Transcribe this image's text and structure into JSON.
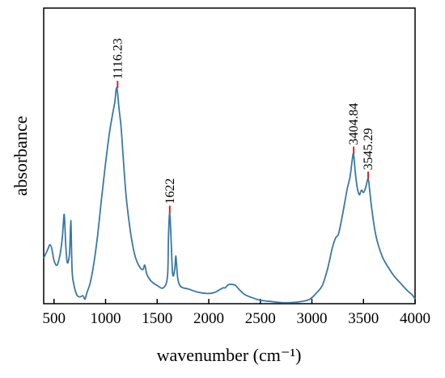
{
  "chart_data": {
    "type": "line",
    "xlabel": "wavenumber (cm⁻¹)",
    "ylabel": "absorbance",
    "xlim": [
      400,
      4000
    ],
    "ylim": [
      0,
      1
    ],
    "y_tick_labels_shown": false,
    "x_ticks": [
      500,
      1000,
      1500,
      2000,
      2500,
      3000,
      3500,
      4000
    ],
    "x_tick_labels": [
      "500",
      "1000",
      "1500",
      "2000",
      "2500",
      "3000",
      "3500",
      "4000"
    ],
    "colors": {
      "line": "#3a78a6",
      "peak_marker": "#e02020",
      "axis": "#000000"
    },
    "series": [
      {
        "x": [
          400,
          440,
          460,
          480,
          500,
          530,
          560,
          580,
          590,
          600,
          615,
          630,
          650,
          660,
          665,
          675,
          690,
          720,
          750,
          780,
          800,
          820,
          850,
          880,
          920,
          960,
          1000,
          1040,
          1070,
          1090,
          1105,
          1116,
          1130,
          1150,
          1170,
          1200,
          1240,
          1280,
          1320,
          1360,
          1380,
          1400,
          1440,
          1500,
          1560,
          1600,
          1610,
          1622,
          1635,
          1650,
          1670,
          1680,
          1690,
          1700,
          1720,
          1750,
          1800,
          1900,
          2000,
          2060,
          2100,
          2120,
          2140,
          2160,
          2180,
          2200,
          2230,
          2260,
          2300,
          2350,
          2400,
          2500,
          2600,
          2700,
          2800,
          2900,
          2980,
          3050,
          3100,
          3150,
          3200,
          3230,
          3260,
          3300,
          3340,
          3370,
          3390,
          3404,
          3420,
          3440,
          3460,
          3480,
          3500,
          3520,
          3545,
          3560,
          3580,
          3620,
          3680,
          3740,
          3800,
          3860,
          3920,
          3970,
          4000
        ],
        "y": [
          0.2,
          0.24,
          0.26,
          0.24,
          0.19,
          0.17,
          0.22,
          0.29,
          0.35,
          0.39,
          0.25,
          0.18,
          0.22,
          0.34,
          0.35,
          0.15,
          0.09,
          0.04,
          0.03,
          0.035,
          0.02,
          0.05,
          0.09,
          0.16,
          0.29,
          0.46,
          0.62,
          0.76,
          0.84,
          0.89,
          0.95,
          0.93,
          0.86,
          0.78,
          0.65,
          0.47,
          0.32,
          0.22,
          0.17,
          0.15,
          0.17,
          0.13,
          0.1,
          0.08,
          0.07,
          0.12,
          0.3,
          0.4,
          0.28,
          0.13,
          0.15,
          0.21,
          0.16,
          0.11,
          0.08,
          0.07,
          0.065,
          0.05,
          0.045,
          0.05,
          0.06,
          0.065,
          0.07,
          0.07,
          0.08,
          0.085,
          0.085,
          0.08,
          0.06,
          0.04,
          0.03,
          0.015,
          0.01,
          0.005,
          0.005,
          0.01,
          0.02,
          0.05,
          0.08,
          0.15,
          0.25,
          0.29,
          0.31,
          0.4,
          0.5,
          0.56,
          0.63,
          0.66,
          0.58,
          0.51,
          0.48,
          0.5,
          0.49,
          0.51,
          0.55,
          0.5,
          0.42,
          0.3,
          0.21,
          0.16,
          0.12,
          0.09,
          0.06,
          0.04,
          0.02
        ]
      }
    ],
    "annotations": [
      {
        "text": "1116.23",
        "x": 1116.23,
        "y": 0.95
      },
      {
        "text": "1622",
        "x": 1622,
        "y": 0.4
      },
      {
        "text": "3404.84",
        "x": 3404.84,
        "y": 0.66
      },
      {
        "text": "3545.29",
        "x": 3545.29,
        "y": 0.55
      }
    ]
  }
}
